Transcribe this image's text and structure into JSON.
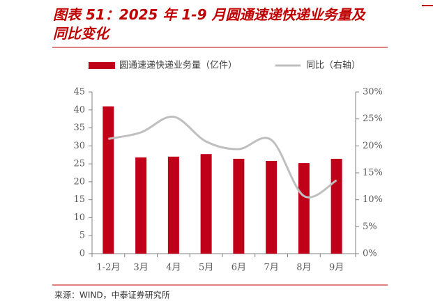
{
  "chart_data": {
    "type": "bar_line",
    "title": "图表 51：2025 年 1-9 月圆通速递快递业务量及同比变化",
    "source": "来源：WIND，中泰证券研究所",
    "categories": [
      "1-2月",
      "3月",
      "4月",
      "5月",
      "6月",
      "7月",
      "8月",
      "9月"
    ],
    "series": [
      {
        "name": "圆通速递快递业务量（亿件）",
        "type": "bar",
        "color": "#c00018",
        "values": [
          41,
          26.8,
          27,
          27.7,
          26.4,
          25.8,
          25.2,
          26.4
        ]
      },
      {
        "name": "同比（右轴）",
        "type": "line",
        "axis": "y2",
        "color": "#bfbfbf",
        "values": [
          21.3,
          22.5,
          25.4,
          20.8,
          19.4,
          21.1,
          10.7,
          13.6
        ]
      }
    ],
    "ylim": [
      0,
      45
    ],
    "yticks": [
      0,
      5,
      10,
      15,
      20,
      25,
      30,
      35,
      40,
      45
    ],
    "y2lim": [
      0,
      30
    ],
    "y2ticks": [
      {
        "value": 0,
        "label": "0%"
      },
      {
        "value": 5,
        "label": "5%"
      },
      {
        "value": 10,
        "label": "10%"
      },
      {
        "value": 15,
        "label": "15%"
      },
      {
        "value": 20,
        "label": "20%"
      },
      {
        "value": 25,
        "label": "25%"
      },
      {
        "value": 30,
        "label": "30%"
      }
    ]
  }
}
